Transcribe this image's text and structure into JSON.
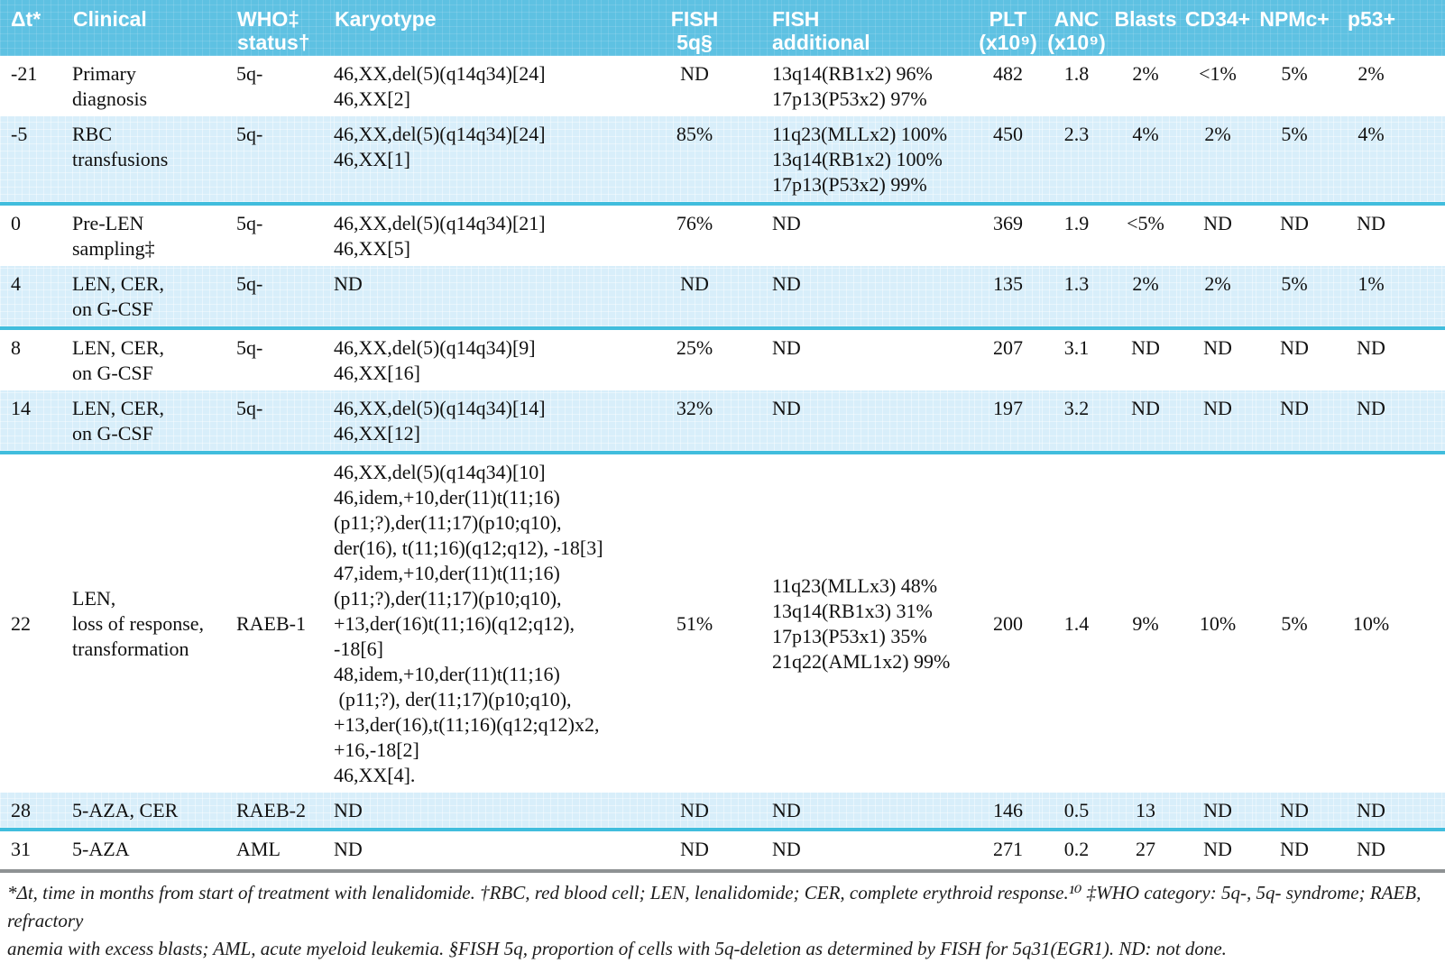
{
  "table": {
    "columns": [
      {
        "key": "dt",
        "label": "Δt*"
      },
      {
        "key": "clinical",
        "label": "Clinical"
      },
      {
        "key": "who",
        "label": "WHO‡\nstatus†"
      },
      {
        "key": "karyotype",
        "label": "Karyotype"
      },
      {
        "key": "fish5q",
        "label": "FISH\n5q§"
      },
      {
        "key": "fish_add",
        "label": "FISH\nadditional"
      },
      {
        "key": "plt",
        "label": "PLT\n(x10⁹)"
      },
      {
        "key": "anc",
        "label": "ANC\n(x10⁹)"
      },
      {
        "key": "blasts",
        "label": "Blasts"
      },
      {
        "key": "cd34",
        "label": "CD34+"
      },
      {
        "key": "npmc",
        "label": "NPMc+"
      },
      {
        "key": "p53",
        "label": "p53+"
      }
    ],
    "rows": [
      {
        "dt": "-21",
        "clinical": "Primary\ndiagnosis",
        "who": "5q-",
        "karyotype": "46,XX,del(5)(q14q34)[24]\n46,XX[2]",
        "fish5q": "ND",
        "fish_add": "13q14(RB1x2) 96%\n17p13(P53x2) 97%",
        "plt": "482",
        "anc": "1.8",
        "blasts": "2%",
        "cd34": "<1%",
        "npmc": "5%",
        "p53": "2%",
        "striped": false,
        "divider": false,
        "middle": false
      },
      {
        "dt": "-5",
        "clinical": "RBC\ntransfusions",
        "who": "5q-",
        "karyotype": "46,XX,del(5)(q14q34)[24]\n46,XX[1]",
        "fish5q": "85%",
        "fish_add": "11q23(MLLx2) 100%\n13q14(RB1x2) 100%\n17p13(P53x2) 99%",
        "plt": "450",
        "anc": "2.3",
        "blasts": "4%",
        "cd34": "2%",
        "npmc": "5%",
        "p53": "4%",
        "striped": true,
        "divider": true,
        "middle": false
      },
      {
        "dt": "0",
        "clinical": "Pre-LEN\nsampling‡",
        "who": "5q-",
        "karyotype": "46,XX,del(5)(q14q34)[21]\n46,XX[5]",
        "fish5q": "76%",
        "fish_add": "ND",
        "plt": "369",
        "anc": "1.9",
        "blasts": "<5%",
        "cd34": "ND",
        "npmc": "ND",
        "p53": "ND",
        "striped": false,
        "divider": false,
        "middle": false
      },
      {
        "dt": "4",
        "clinical": "LEN, CER,\non G-CSF",
        "who": "5q-",
        "karyotype": "ND",
        "fish5q": "ND",
        "fish_add": "ND",
        "plt": "135",
        "anc": "1.3",
        "blasts": "2%",
        "cd34": "2%",
        "npmc": "5%",
        "p53": "1%",
        "striped": true,
        "divider": true,
        "middle": false
      },
      {
        "dt": "8",
        "clinical": "LEN, CER,\non G-CSF",
        "who": "5q-",
        "karyotype": "46,XX,del(5)(q14q34)[9]\n46,XX[16]",
        "fish5q": "25%",
        "fish_add": "ND",
        "plt": "207",
        "anc": "3.1",
        "blasts": "ND",
        "cd34": "ND",
        "npmc": "ND",
        "p53": "ND",
        "striped": false,
        "divider": false,
        "middle": false
      },
      {
        "dt": "14",
        "clinical": "LEN, CER,\non G-CSF",
        "who": "5q-",
        "karyotype": "46,XX,del(5)(q14q34)[14]\n46,XX[12]",
        "fish5q": "32%",
        "fish_add": "ND",
        "plt": "197",
        "anc": "3.2",
        "blasts": "ND",
        "cd34": "ND",
        "npmc": "ND",
        "p53": "ND",
        "striped": true,
        "divider": true,
        "middle": false
      },
      {
        "dt": "22",
        "clinical": "LEN,\nloss of response,\ntransformation",
        "who": "RAEB-1",
        "karyotype": "46,XX,del(5)(q14q34)[10]\n46,idem,+10,der(11)t(11;16)\n(p11;?),der(11;17)(p10;q10),\nder(16), t(11;16)(q12;q12), -18[3]\n47,idem,+10,der(11)t(11;16)\n(p11;?),der(11;17)(p10;q10),\n+13,der(16)t(11;16)(q12;q12),\n-18[6]\n48,idem,+10,der(11)t(11;16)\n (p11;?), der(11;17)(p10;q10),\n+13,der(16),t(11;16)(q12;q12)x2,\n+16,-18[2]\n46,XX[4].",
        "fish5q": "51%",
        "fish_add": "11q23(MLLx3) 48%\n13q14(RB1x3) 31%\n17p13(P53x1) 35%\n21q22(AML1x2) 99%",
        "plt": "200",
        "anc": "1.4",
        "blasts": "9%",
        "cd34": "10%",
        "npmc": "5%",
        "p53": "10%",
        "striped": false,
        "divider": false,
        "middle": true
      },
      {
        "dt": "28",
        "clinical": "5-AZA, CER",
        "who": "RAEB-2",
        "karyotype": "ND",
        "fish5q": "ND",
        "fish_add": "ND",
        "plt": "146",
        "anc": "0.5",
        "blasts": "13",
        "cd34": "ND",
        "npmc": "ND",
        "p53": "ND",
        "striped": true,
        "divider": true,
        "middle": false
      },
      {
        "dt": "31",
        "clinical": "5-AZA",
        "who": "AML",
        "karyotype": "ND",
        "fish5q": "ND",
        "fish_add": "ND",
        "plt": "271",
        "anc": "0.2",
        "blasts": "27",
        "cd34": "ND",
        "npmc": "ND",
        "p53": "ND",
        "striped": false,
        "divider": false,
        "middle": false
      }
    ]
  },
  "footnote": {
    "text": "*Δt, time in months from start of treatment with lenalidomide. †RBC, red blood cell; LEN, lenalidomide; CER, complete erythroid response.¹⁰ ‡WHO category: 5q-, 5q- syndrome; RAEB, refractory\nanemia with excess blasts; AML, acute myeloid leukemia. §FISH 5q, proportion of cells with 5q-deletion as determined by FISH for 5q31(EGR1). ND: not done."
  },
  "colors": {
    "header_bg": "#5ec1e2",
    "stripe_bg": "#d8eefa",
    "divider": "#41bddd",
    "footnote_rule": "#8e9294"
  }
}
